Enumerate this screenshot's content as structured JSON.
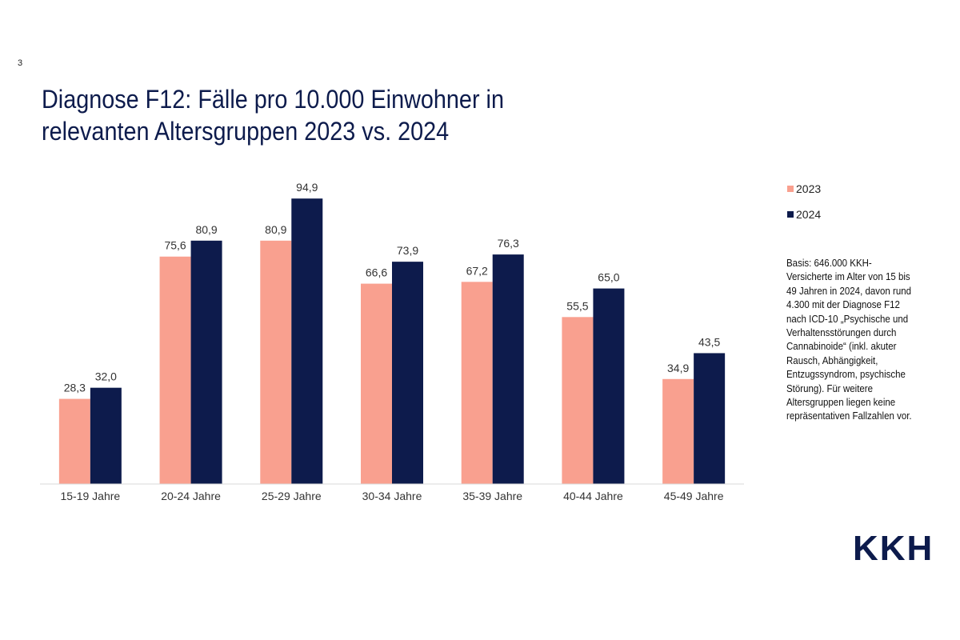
{
  "page_number": "3",
  "title_lines": [
    "Diagnose F12: Fälle pro 10.000 Einwohner in",
    "relevanten Altersgruppen 2023 vs. 2024"
  ],
  "note": "Basis: 646.000 KKH-\nVersicherte im Alter von 15 bis\n49 Jahren in 2024, davon rund\n4.300 mit der Diagnose F12\nnach ICD-10 „Psychische und\nVerhaltensstörungen durch\nCannabinoide“ (inkl. akuter\nRausch, Abhängigkeit,\nEntzugssyndrom, psychische\nStörung). Für weitere\nAltersgruppen liegen keine\nrepräsentativen Fallzahlen vor.",
  "logo": "KKH",
  "colors": {
    "series_2023": "#f9a08f",
    "series_2024": "#0d1b4c",
    "axis": "#d9d9d9"
  },
  "chart_data": {
    "type": "bar",
    "title": "Diagnose F12: Fälle pro 10.000 Einwohner in relevanten Altersgruppen 2023 vs. 2024",
    "categories": [
      "15-19 Jahre",
      "20-24 Jahre",
      "25-29 Jahre",
      "30-34 Jahre",
      "35-39 Jahre",
      "40-44 Jahre",
      "45-49 Jahre"
    ],
    "series": [
      {
        "name": "2023",
        "values": [
          28.3,
          75.6,
          80.9,
          66.6,
          67.2,
          55.5,
          34.9
        ],
        "labels": [
          "28,3",
          "75,6",
          "80,9",
          "66,6",
          "67,2",
          "55,5",
          "34,9"
        ]
      },
      {
        "name": "2024",
        "values": [
          32.0,
          80.9,
          94.9,
          73.9,
          76.3,
          65.0,
          43.5
        ],
        "labels": [
          "32,0",
          "80,9",
          "94,9",
          "73,9",
          "76,3",
          "65,0",
          "43,5"
        ]
      }
    ],
    "ylim": [
      0,
      100
    ],
    "grid": false,
    "legend": "right",
    "xlabel": "",
    "ylabel": ""
  }
}
